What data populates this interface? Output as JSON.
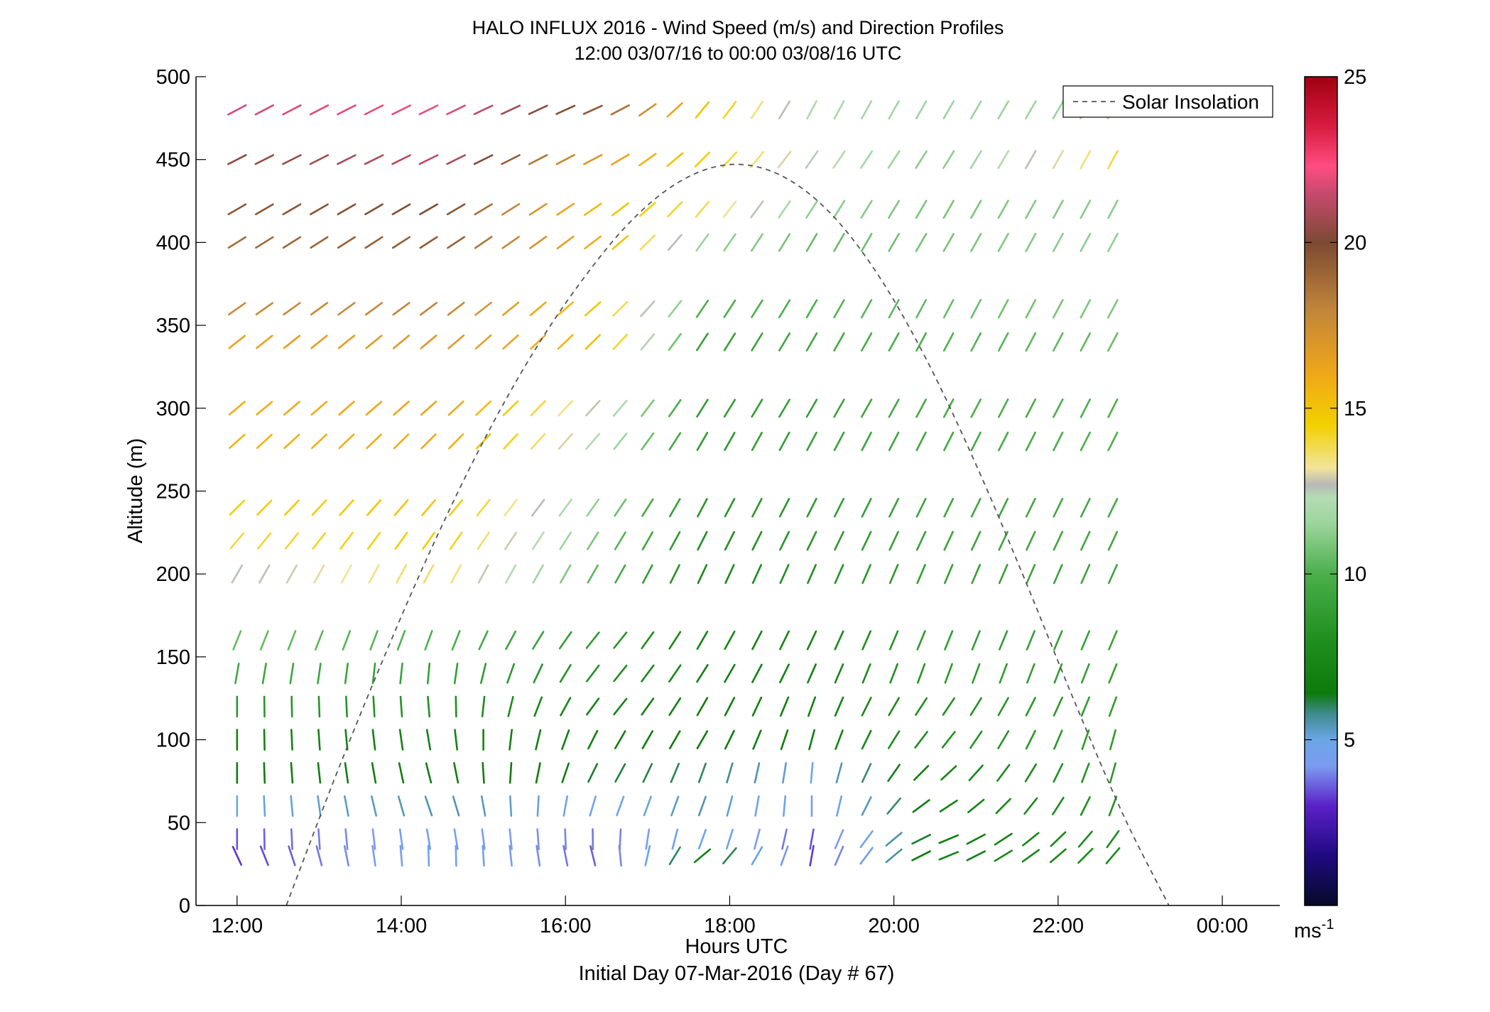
{
  "chart_data": {
    "type": "wind-barb-profile",
    "title": "HALO INFLUX 2016 - Wind Speed (m/s) and Direction Profiles",
    "subtitle": "12:00 03/07/16 to 00:00 03/08/16  UTC",
    "xlabel": "Hours UTC",
    "xlabel2": "Initial Day 07-Mar-2016 (Day # 67)",
    "ylabel": "Altitude (m)",
    "xlim": [
      11.5,
      24.7
    ],
    "ylim": [
      0,
      500
    ],
    "xticks": [
      12,
      14,
      16,
      18,
      20,
      22,
      24
    ],
    "xtick_labels": [
      "12:00",
      "14:00",
      "16:00",
      "18:00",
      "20:00",
      "22:00",
      "00:00"
    ],
    "yticks": [
      0,
      50,
      100,
      150,
      200,
      250,
      300,
      350,
      400,
      450,
      500
    ],
    "ytick_labels": [
      "0",
      "50",
      "100",
      "150",
      "200",
      "250",
      "300",
      "350",
      "400",
      "450",
      "500"
    ],
    "legend": {
      "entries": [
        "Solar Insolation"
      ],
      "placement": "top-right"
    },
    "colorbar": {
      "unit_label": "ms",
      "unit_exponent": "-1",
      "range": [
        0,
        25
      ],
      "ticks": [
        5,
        10,
        15,
        20,
        25
      ],
      "tick_labels": [
        "5",
        "10",
        "15",
        "20",
        "25"
      ],
      "colormap": [
        {
          "v": 0,
          "c": "#050a28"
        },
        {
          "v": 1.5,
          "c": "#200a80"
        },
        {
          "v": 3,
          "c": "#5a20c8"
        },
        {
          "v": 4.2,
          "c": "#7b9bf0"
        },
        {
          "v": 5,
          "c": "#6aa6e8"
        },
        {
          "v": 5.8,
          "c": "#3e8a8a"
        },
        {
          "v": 6.4,
          "c": "#0c7a0c"
        },
        {
          "v": 8,
          "c": "#1f8f1f"
        },
        {
          "v": 10,
          "c": "#4caf4c"
        },
        {
          "v": 11.5,
          "c": "#9bd49b"
        },
        {
          "v": 12.3,
          "c": "#b4dcb4"
        },
        {
          "v": 12.7,
          "c": "#b8b8b8"
        },
        {
          "v": 13.2,
          "c": "#f2e49a"
        },
        {
          "v": 14.5,
          "c": "#f2d000"
        },
        {
          "v": 16,
          "c": "#f0a818"
        },
        {
          "v": 18,
          "c": "#c0843a"
        },
        {
          "v": 20,
          "c": "#7c4a32"
        },
        {
          "v": 21.5,
          "c": "#c84a70"
        },
        {
          "v": 22.3,
          "c": "#ff4d80"
        },
        {
          "v": 23.5,
          "c": "#d81c40"
        },
        {
          "v": 25,
          "c": "#a00010"
        }
      ]
    },
    "solar_insolation": {
      "style": "dashed",
      "color": "#555555",
      "x": [
        12.6,
        13.2,
        13.8,
        14.4,
        15.0,
        15.6,
        16.2,
        16.8,
        17.4,
        18.0,
        18.6,
        19.2,
        19.8,
        20.4,
        21.0,
        21.6,
        22.2,
        22.8,
        23.35
      ],
      "y": [
        0,
        78,
        151,
        219,
        280,
        333,
        377,
        413,
        437,
        447,
        441,
        419,
        381,
        329,
        266,
        196,
        123,
        54,
        0
      ]
    },
    "times": [
      12.0,
      12.333,
      12.667,
      13.0,
      13.333,
      13.667,
      14.0,
      14.333,
      14.667,
      15.0,
      15.333,
      15.667,
      16.0,
      16.333,
      16.667,
      17.0,
      17.333,
      17.667,
      18.0,
      18.333,
      18.667,
      19.0,
      19.333,
      19.667,
      20.0,
      20.333,
      20.667,
      21.0,
      21.333,
      21.667,
      22.0,
      22.333,
      22.667
    ],
    "altitudes": [
      30,
      40,
      60,
      80,
      100,
      120,
      140,
      160,
      200,
      220,
      240,
      280,
      300,
      340,
      360,
      400,
      420,
      450,
      480
    ],
    "speed_bands": [
      {
        "alt": 480,
        "times": [
          12.0,
          14.5,
          16.5,
          17.667,
          19.0,
          20.5,
          22.7
        ],
        "speeds": [
          21.7,
          22.0,
          19.2,
          15.0,
          12.0,
          11.5,
          11.5
        ],
        "direction": [
          62,
          64,
          66,
          40,
          28,
          30,
          30
        ]
      },
      {
        "alt": 450,
        "times": [
          12.0,
          14.5,
          16.5,
          17.667,
          19.0,
          20.5,
          22.7
        ],
        "speeds": [
          20.3,
          21.3,
          16.5,
          14.5,
          12.5,
          11.0,
          14.0
        ],
        "direction": [
          63,
          64,
          62,
          45,
          35,
          32,
          28
        ]
      },
      {
        "alt": 420,
        "times": [
          12.0,
          14.5,
          16.5,
          17.667,
          19.0,
          20.5,
          22.7
        ],
        "speeds": [
          19.5,
          20.0,
          15.0,
          13.8,
          11.3,
          10.8,
          11.2
        ],
        "direction": [
          60,
          60,
          55,
          40,
          33,
          30,
          28
        ]
      },
      {
        "alt": 400,
        "times": [
          12.0,
          14.5,
          16.5,
          17.667,
          19.0,
          20.5,
          22.7
        ],
        "speeds": [
          18.8,
          19.5,
          15.5,
          11.5,
          10.5,
          10.8,
          11.3
        ],
        "direction": [
          58,
          57,
          52,
          36,
          30,
          30,
          28
        ]
      },
      {
        "alt": 360,
        "times": [
          12.0,
          14.5,
          16.5,
          17.667,
          19.0,
          20.5,
          22.7
        ],
        "speeds": [
          17.6,
          18.0,
          14.5,
          10.0,
          10.0,
          10.5,
          11.0
        ],
        "direction": [
          55,
          53,
          48,
          34,
          30,
          28,
          28
        ]
      },
      {
        "alt": 340,
        "times": [
          12.0,
          14.5,
          16.5,
          17.667,
          19.0,
          20.5,
          22.7
        ],
        "speeds": [
          16.3,
          17.0,
          15.0,
          9.0,
          9.5,
          10.0,
          10.5
        ],
        "direction": [
          52,
          50,
          45,
          33,
          30,
          28,
          28
        ]
      },
      {
        "alt": 300,
        "times": [
          12.0,
          14.5,
          16.5,
          17.667,
          19.0,
          20.5,
          22.7
        ],
        "speeds": [
          15.8,
          16.2,
          12.5,
          8.8,
          9.0,
          9.8,
          10.0
        ],
        "direction": [
          50,
          48,
          42,
          32,
          30,
          28,
          27
        ]
      },
      {
        "alt": 280,
        "times": [
          12.0,
          14.5,
          16.5,
          17.667,
          19.0,
          20.5,
          22.7
        ],
        "speeds": [
          15.5,
          16.0,
          12.0,
          8.6,
          9.0,
          9.6,
          10.0
        ],
        "direction": [
          48,
          45,
          40,
          30,
          28,
          27,
          27
        ]
      },
      {
        "alt": 240,
        "times": [
          12.0,
          14.5,
          16.5,
          17.667,
          19.0,
          20.5,
          22.7
        ],
        "speeds": [
          14.5,
          15.0,
          11.0,
          8.3,
          8.6,
          9.3,
          9.6
        ],
        "direction": [
          45,
          40,
          35,
          28,
          27,
          26,
          26
        ]
      },
      {
        "alt": 220,
        "times": [
          12.0,
          14.5,
          16.5,
          17.667,
          19.0,
          20.5,
          22.7
        ],
        "speeds": [
          14.0,
          14.6,
          10.5,
          8.0,
          8.4,
          9.2,
          9.5
        ],
        "direction": [
          40,
          35,
          32,
          27,
          26,
          25,
          25
        ]
      },
      {
        "alt": 200,
        "times": [
          12.0,
          14.5,
          16.5,
          17.667,
          19.0,
          20.5,
          22.7
        ],
        "speeds": [
          12.6,
          13.8,
          10.0,
          7.5,
          8.0,
          9.0,
          9.3
        ],
        "direction": [
          30,
          28,
          30,
          25,
          24,
          23,
          24
        ]
      },
      {
        "alt": 160,
        "times": [
          12.0,
          14.5,
          16.5,
          17.667,
          19.0,
          20.5,
          22.7
        ],
        "speeds": [
          10.5,
          10.0,
          8.5,
          7.0,
          7.2,
          8.8,
          9.2
        ],
        "direction": [
          22,
          20,
          40,
          30,
          25,
          22,
          23
        ]
      },
      {
        "alt": 140,
        "times": [
          12.0,
          14.5,
          16.5,
          17.667,
          19.0,
          20.5,
          22.7
        ],
        "speeds": [
          9.5,
          9.0,
          8.0,
          6.8,
          7.0,
          8.5,
          9.0
        ],
        "direction": [
          10,
          5,
          40,
          32,
          24,
          20,
          22
        ]
      },
      {
        "alt": 120,
        "times": [
          12.0,
          14.5,
          16.5,
          17.667,
          19.0,
          20.5,
          22.7
        ],
        "speeds": [
          8.5,
          8.0,
          7.0,
          6.6,
          6.9,
          8.0,
          8.8
        ],
        "direction": [
          0,
          -5,
          40,
          30,
          20,
          35,
          20
        ]
      },
      {
        "alt": 100,
        "times": [
          12.0,
          14.5,
          16.5,
          17.667,
          19.0,
          20.5,
          22.7
        ],
        "speeds": [
          7.0,
          7.0,
          6.7,
          6.5,
          6.8,
          8.0,
          8.7
        ],
        "direction": [
          0,
          -10,
          30,
          30,
          15,
          40,
          15
        ]
      },
      {
        "alt": 80,
        "times": [
          12.0,
          14.5,
          16.5,
          17.667,
          19.0,
          20.5,
          22.7
        ],
        "speeds": [
          6.6,
          6.8,
          6.2,
          6.0,
          5.0,
          7.0,
          8.5
        ],
        "direction": [
          0,
          -15,
          30,
          20,
          5,
          50,
          15
        ]
      },
      {
        "alt": 60,
        "times": [
          12.0,
          14.5,
          16.5,
          17.667,
          19.0,
          20.5,
          22.7
        ],
        "speeds": [
          5.0,
          5.5,
          4.8,
          5.5,
          4.2,
          6.8,
          8.2
        ],
        "direction": [
          0,
          -20,
          20,
          20,
          0,
          60,
          20
        ]
      },
      {
        "alt": 40,
        "times": [
          12.0,
          14.5,
          16.5,
          17.667,
          19.0,
          20.5,
          22.7
        ],
        "speeds": [
          3.5,
          4.5,
          3.8,
          5.0,
          3.5,
          6.6,
          7.8
        ],
        "direction": [
          0,
          -10,
          0,
          20,
          10,
          70,
          35
        ]
      },
      {
        "alt": 30,
        "times": [
          12.0,
          14.5,
          16.5,
          17.667,
          19.0,
          20.5,
          22.7
        ],
        "speeds": [
          3.2,
          4.8,
          3.5,
          7.0,
          3.2,
          6.8,
          7.8
        ],
        "direction": [
          -25,
          0,
          -15,
          50,
          10,
          70,
          40
        ]
      }
    ]
  }
}
